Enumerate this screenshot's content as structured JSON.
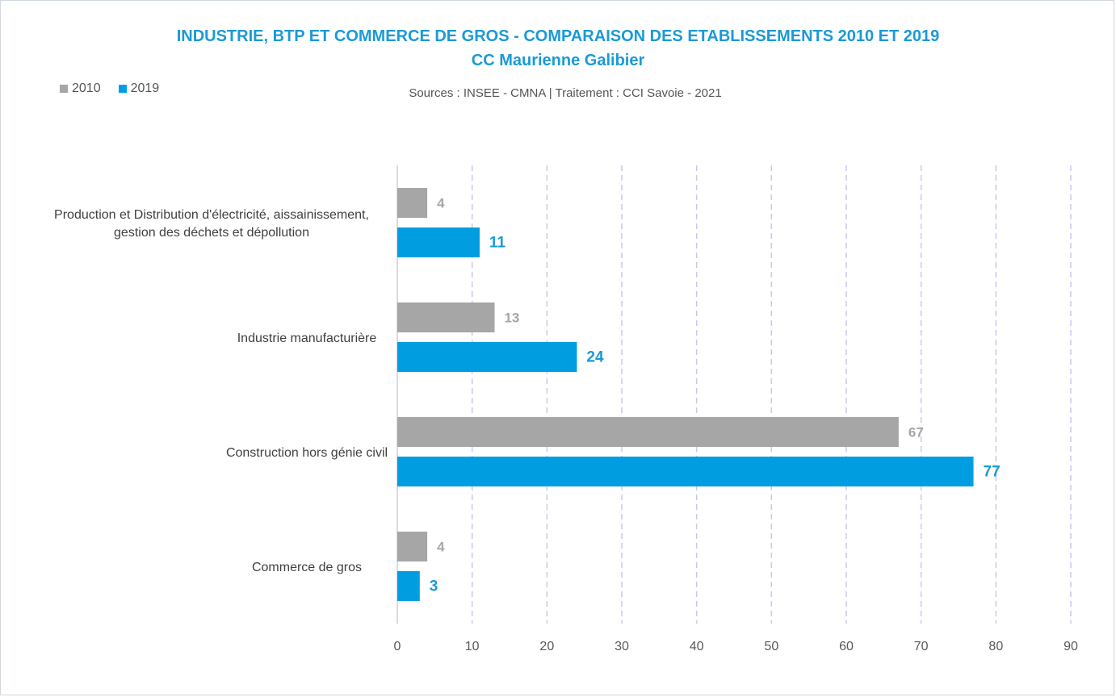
{
  "chart_data": {
    "type": "bar",
    "orientation": "horizontal",
    "title": "INDUSTRIE, BTP ET COMMERCE DE GROS - COMPARAISON DES ETABLISSEMENTS 2010 ET 2019",
    "subtitle": "CC Maurienne Galibier",
    "source": "Sources : INSEE - CMNA  |  Traitement : CCI Savoie - 2021",
    "categories": [
      [
        "Production et Distribution d'électricité, aissainissement,",
        "gestion des déchets et dépollution"
      ],
      [
        "Industrie manufacturière"
      ],
      [
        "Construction hors génie civil"
      ],
      [
        "Commerce de gros"
      ]
    ],
    "series": [
      {
        "name": "2010",
        "color": "#a6a6a6",
        "values": [
          4,
          13,
          67,
          4
        ]
      },
      {
        "name": "2019",
        "color": "#009ee0",
        "values": [
          11,
          24,
          77,
          3
        ]
      }
    ],
    "xlim": [
      0,
      90
    ],
    "xticks": [
      0,
      10,
      20,
      30,
      40,
      50,
      60,
      70,
      80,
      90
    ],
    "grid": true,
    "legend_position": "top-left"
  }
}
